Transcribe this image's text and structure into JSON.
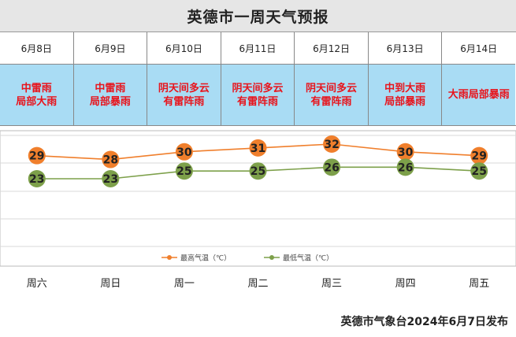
{
  "title": "英德市一周天气预报",
  "days": [
    {
      "date": "6月8日",
      "weather": "中雷雨\n局部大雨",
      "weekday": "周六"
    },
    {
      "date": "6月9日",
      "weather": "中雷雨\n局部暴雨",
      "weekday": "周日"
    },
    {
      "date": "6月10日",
      "weather": "阴天间多云\n有雷阵雨",
      "weekday": "周一"
    },
    {
      "date": "6月11日",
      "weather": "阴天间多云\n有雷阵雨",
      "weekday": "周二"
    },
    {
      "date": "6月12日",
      "weather": "阴天间多云\n有雷阵雨",
      "weekday": "周三"
    },
    {
      "date": "6月13日",
      "weather": "中到大雨\n局部暴雨",
      "weekday": "周四"
    },
    {
      "date": "6月14日",
      "weather": "大雨局部暴雨",
      "weekday": "周五"
    }
  ],
  "chart_data": {
    "type": "line",
    "x": [
      "6月8日",
      "6月9日",
      "6月10日",
      "6月11日",
      "6月12日",
      "6月13日",
      "6月14日"
    ],
    "series": [
      {
        "name": "最高气温（℃）",
        "values": [
          29,
          28,
          30,
          31,
          32,
          30,
          29
        ],
        "color": "#f07f2c"
      },
      {
        "name": "最低气温（℃）",
        "values": [
          23,
          23,
          25,
          25,
          26,
          26,
          25
        ],
        "color": "#7da04a"
      }
    ],
    "grid": true,
    "legend_position": "bottom"
  },
  "colors": {
    "weather_band": "#a9dcf4",
    "weather_text": "#e8141c"
  },
  "footer": "英德市气象台2024年6月7日发布"
}
